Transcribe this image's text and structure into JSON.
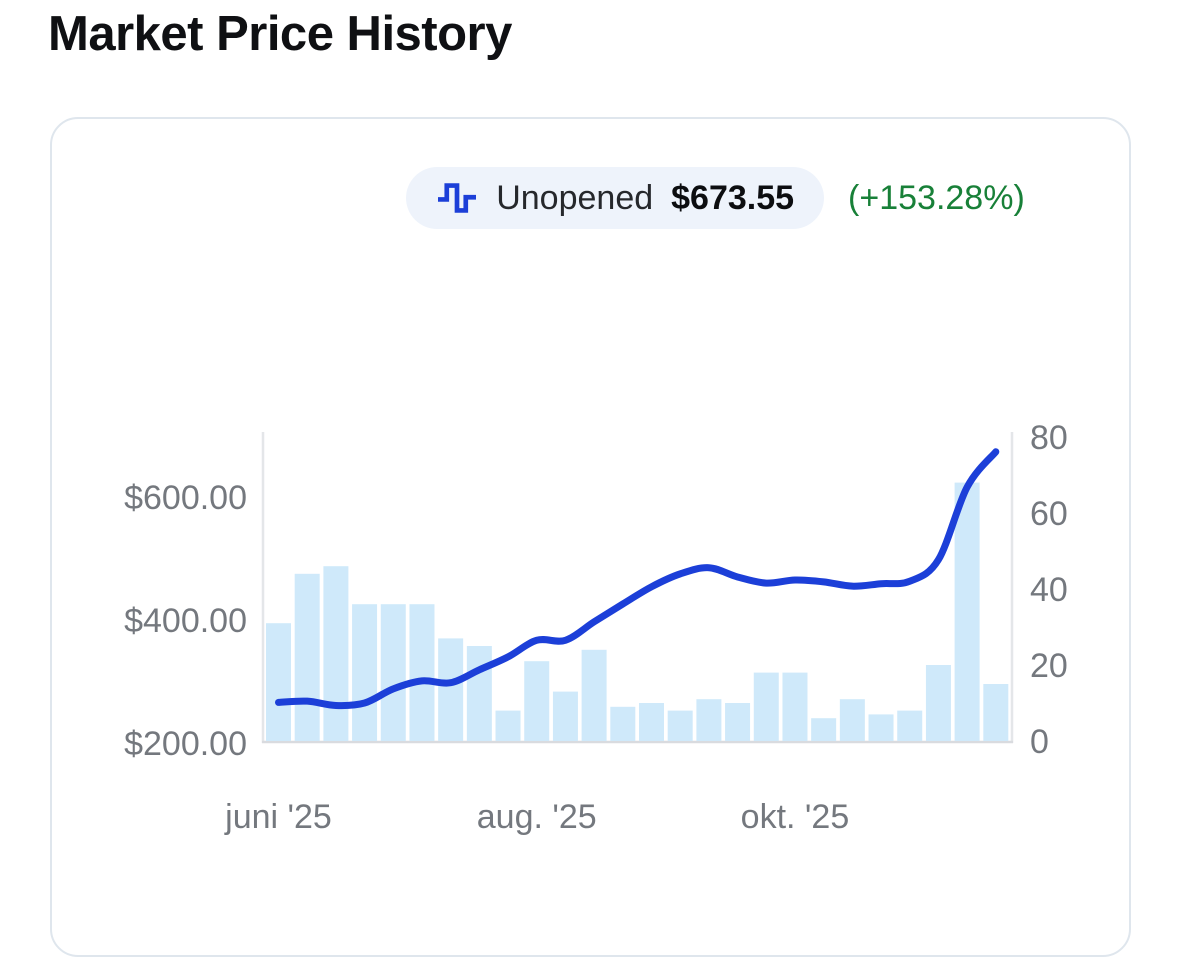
{
  "page_title": "Market Price History",
  "legend": {
    "series_label": "Unopened",
    "price": "$673.55",
    "change_percent": "(+153.28%)",
    "icon": "step-line-icon"
  },
  "chart_data": {
    "type": "line+bar",
    "title": "Market Price History",
    "grid": false,
    "legend_position": "top",
    "x_ticks": [
      {
        "label": "juni '25",
        "index": 0
      },
      {
        "label": "aug. '25",
        "index": 9
      },
      {
        "label": "okt. '25",
        "index": 18
      }
    ],
    "left_axis": {
      "ticks": [
        {
          "label": "$200.00",
          "value": 200
        },
        {
          "label": "$400.00",
          "value": 400
        },
        {
          "label": "$600.00",
          "value": 600
        }
      ],
      "range": [
        197,
        700
      ]
    },
    "right_axis": {
      "ticks": [
        {
          "label": "0",
          "value": 0
        },
        {
          "label": "20",
          "value": 20
        },
        {
          "label": "40",
          "value": 40
        },
        {
          "label": "60",
          "value": 60
        },
        {
          "label": "80",
          "value": 80
        }
      ],
      "range": [
        0,
        81
      ]
    },
    "series": [
      {
        "name": "Unopened",
        "type": "line",
        "axis": "left",
        "color": "#1c3fd8",
        "values": [
          266,
          268,
          261,
          265,
          288,
          301,
          298,
          319,
          340,
          367,
          367,
          397,
          426,
          454,
          475,
          485,
          470,
          460,
          465,
          462,
          455,
          459,
          463,
          498,
          616,
          673.55
        ]
      },
      {
        "name": "volume_bars",
        "type": "bar",
        "axis": "right",
        "color": "#cfe9fa",
        "values": [
          31,
          44,
          46,
          36,
          36,
          36,
          27,
          25,
          8,
          21,
          13,
          24,
          9,
          10,
          8,
          11,
          10,
          18,
          18,
          6,
          11,
          7,
          8,
          20,
          68,
          15
        ]
      }
    ]
  },
  "colors": {
    "line_blue": "#1c3fd8",
    "bar_blue": "#cfe9fa",
    "positive_green": "#188038",
    "axis_text_gray": "#74787e",
    "axis_line_gray": "#e4e6e9",
    "pill_background": "#eef3fb",
    "card_border": "#dfe6ed"
  }
}
